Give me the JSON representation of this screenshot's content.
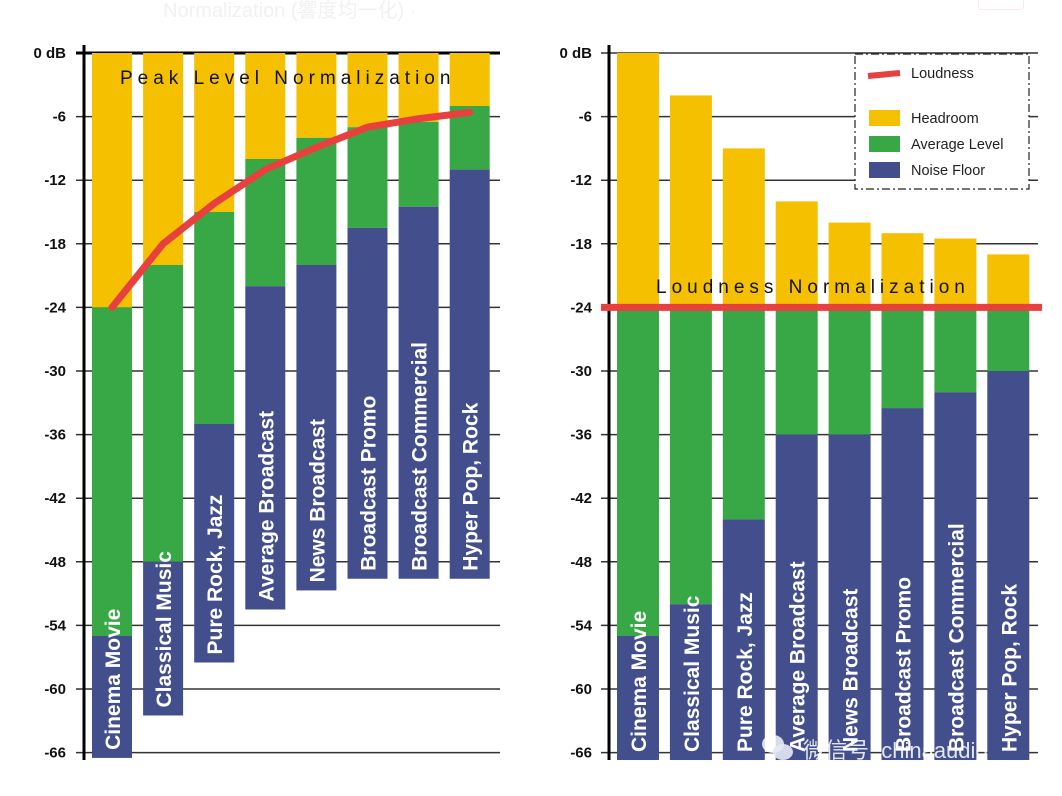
{
  "page": {
    "faint_title": "Normalization (響度均一化) ·"
  },
  "watermark": {
    "text": "微信号: chinaaudio",
    "icon": "wechat-icon"
  },
  "colors": {
    "headroom": "#f5c000",
    "average": "#38a846",
    "noise": "#434f8c",
    "loudness": "#e8403f"
  },
  "chart_data": [
    {
      "type": "bar",
      "stacked": true,
      "title": "Peak Level Normalization",
      "ylim": [
        -66,
        0
      ],
      "yticks": [
        "0 dB",
        "-6",
        "-12",
        "-18",
        "-24",
        "-30",
        "-36",
        "-42",
        "-48",
        "-54",
        "-60",
        "-66"
      ],
      "ytick_values": [
        0,
        -6,
        -12,
        -18,
        -24,
        -30,
        -36,
        -42,
        -48,
        -54,
        -60,
        -66
      ],
      "grid": true,
      "categories": [
        "Cinema Movie",
        "Classical Music",
        "Pure Rock, Jazz",
        "Average Broadcast",
        "News Broadcast",
        "Broadcast Promo",
        "Broadcast  Commercial",
        "Hyper Pop, Rock"
      ],
      "peak": [
        0,
        0,
        0,
        0,
        0,
        0,
        0,
        0
      ],
      "average_level_top": [
        -24,
        -20,
        -15,
        -10,
        -8,
        -7,
        -6.5,
        -5
      ],
      "noise_floor_top": [
        -55,
        -48,
        -35,
        -22,
        -20,
        -16.5,
        -14.5,
        -11
      ],
      "bottom": [
        -66.5,
        -62.5,
        -57.5,
        -52.5,
        -50.7,
        -49.6,
        -49.6,
        -49.6
      ],
      "loudness_curve": [
        -24,
        -18,
        -14.2,
        -11,
        -8.9,
        -7,
        -6.2,
        -5.6
      ]
    },
    {
      "type": "bar",
      "stacked": true,
      "title": "Loudness Normalization",
      "ylim": [
        -66,
        0
      ],
      "yticks": [
        "0 dB",
        "-6",
        "-12",
        "-18",
        "-24",
        "-30",
        "-36",
        "-42",
        "-48",
        "-54",
        "-60",
        "-66"
      ],
      "ytick_values": [
        0,
        -6,
        -12,
        -18,
        -24,
        -30,
        -36,
        -42,
        -48,
        -54,
        -60,
        -66
      ],
      "grid": true,
      "categories": [
        "Cinema Movie",
        "Classical Music",
        "Pure Rock, Jazz",
        "Average Broadcast",
        "News Broadcast",
        "Broadcast Promo",
        "Broadcast  Commercial",
        "Hyper Pop, Rock"
      ],
      "peak": [
        0,
        -4,
        -9,
        -14,
        -16,
        -17,
        -17.5,
        -19
      ],
      "average_level_top": [
        -24,
        -24,
        -24,
        -24,
        -24,
        -24,
        -24,
        -24
      ],
      "noise_floor_top": [
        -55,
        -52,
        -44,
        -36,
        -36,
        -33.5,
        -32,
        -30
      ],
      "bottom": [
        -66.7,
        -66.7,
        -66.7,
        -66.7,
        -66.7,
        -66.7,
        -66.7,
        -66.7
      ],
      "loudness_level": -24,
      "legend": {
        "position": "top-right",
        "items": [
          "Loudness",
          "Headroom",
          "Average Level",
          "Noise Floor"
        ]
      }
    }
  ]
}
